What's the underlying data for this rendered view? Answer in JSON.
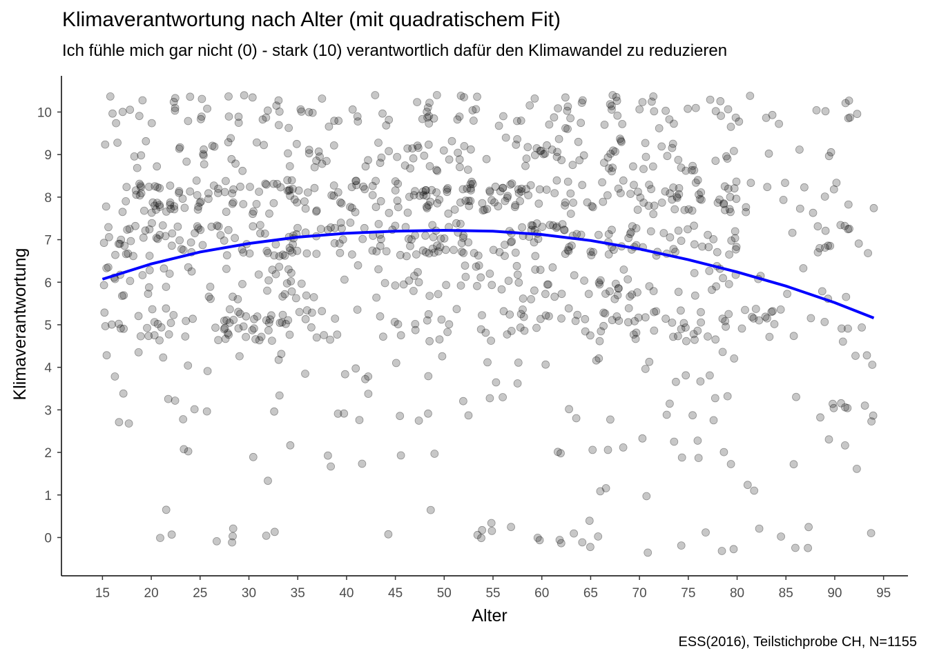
{
  "chart_data": {
    "type": "scatter",
    "title": "Klimaverantwortung nach Alter (mit quadratischem Fit)",
    "subtitle": "Ich fühle mich gar nicht (0) - stark (10) verantwortlich dafür den Klimawandel zu reduzieren",
    "caption": "ESS(2016), Teilstichprobe CH, N=1155",
    "xlabel": "Alter",
    "ylabel": "Klimaverantwortung",
    "xlim": [
      10.8,
      97.5
    ],
    "ylim": [
      -0.9,
      10.85
    ],
    "xticks": [
      15,
      20,
      25,
      30,
      35,
      40,
      45,
      50,
      55,
      60,
      65,
      70,
      75,
      80,
      85,
      90,
      95
    ],
    "yticks": [
      0,
      1,
      2,
      3,
      4,
      5,
      6,
      7,
      8,
      9,
      10
    ],
    "grid": false,
    "point_color": "#000000",
    "point_alpha": 0.22,
    "fit_color": "#0000ff",
    "n": 1155,
    "note": "points are jittered individual responses (0-10 scale) by age 15-94",
    "points_per_level": [
      {
        "y": 0,
        "count": 35
      },
      {
        "y": 1,
        "count": 8
      },
      {
        "y": 2,
        "count": 25
      },
      {
        "y": 3,
        "count": 40
      },
      {
        "y": 4,
        "count": 35
      },
      {
        "y": 5,
        "count": 170
      },
      {
        "y": 6,
        "count": 120
      },
      {
        "y": 7,
        "count": 230
      },
      {
        "y": 8,
        "count": 250
      },
      {
        "y": 9,
        "count": 120
      },
      {
        "y": 10,
        "count": 122
      }
    ],
    "fit_line": {
      "x": [
        15,
        20,
        25,
        30,
        35,
        40,
        45,
        50,
        55,
        60,
        65,
        70,
        75,
        80,
        85,
        90,
        94
      ],
      "y": [
        6.07,
        6.43,
        6.71,
        6.91,
        7.06,
        7.15,
        7.2,
        7.22,
        7.2,
        7.12,
        6.98,
        6.78,
        6.53,
        6.24,
        5.91,
        5.52,
        5.16
      ]
    }
  }
}
